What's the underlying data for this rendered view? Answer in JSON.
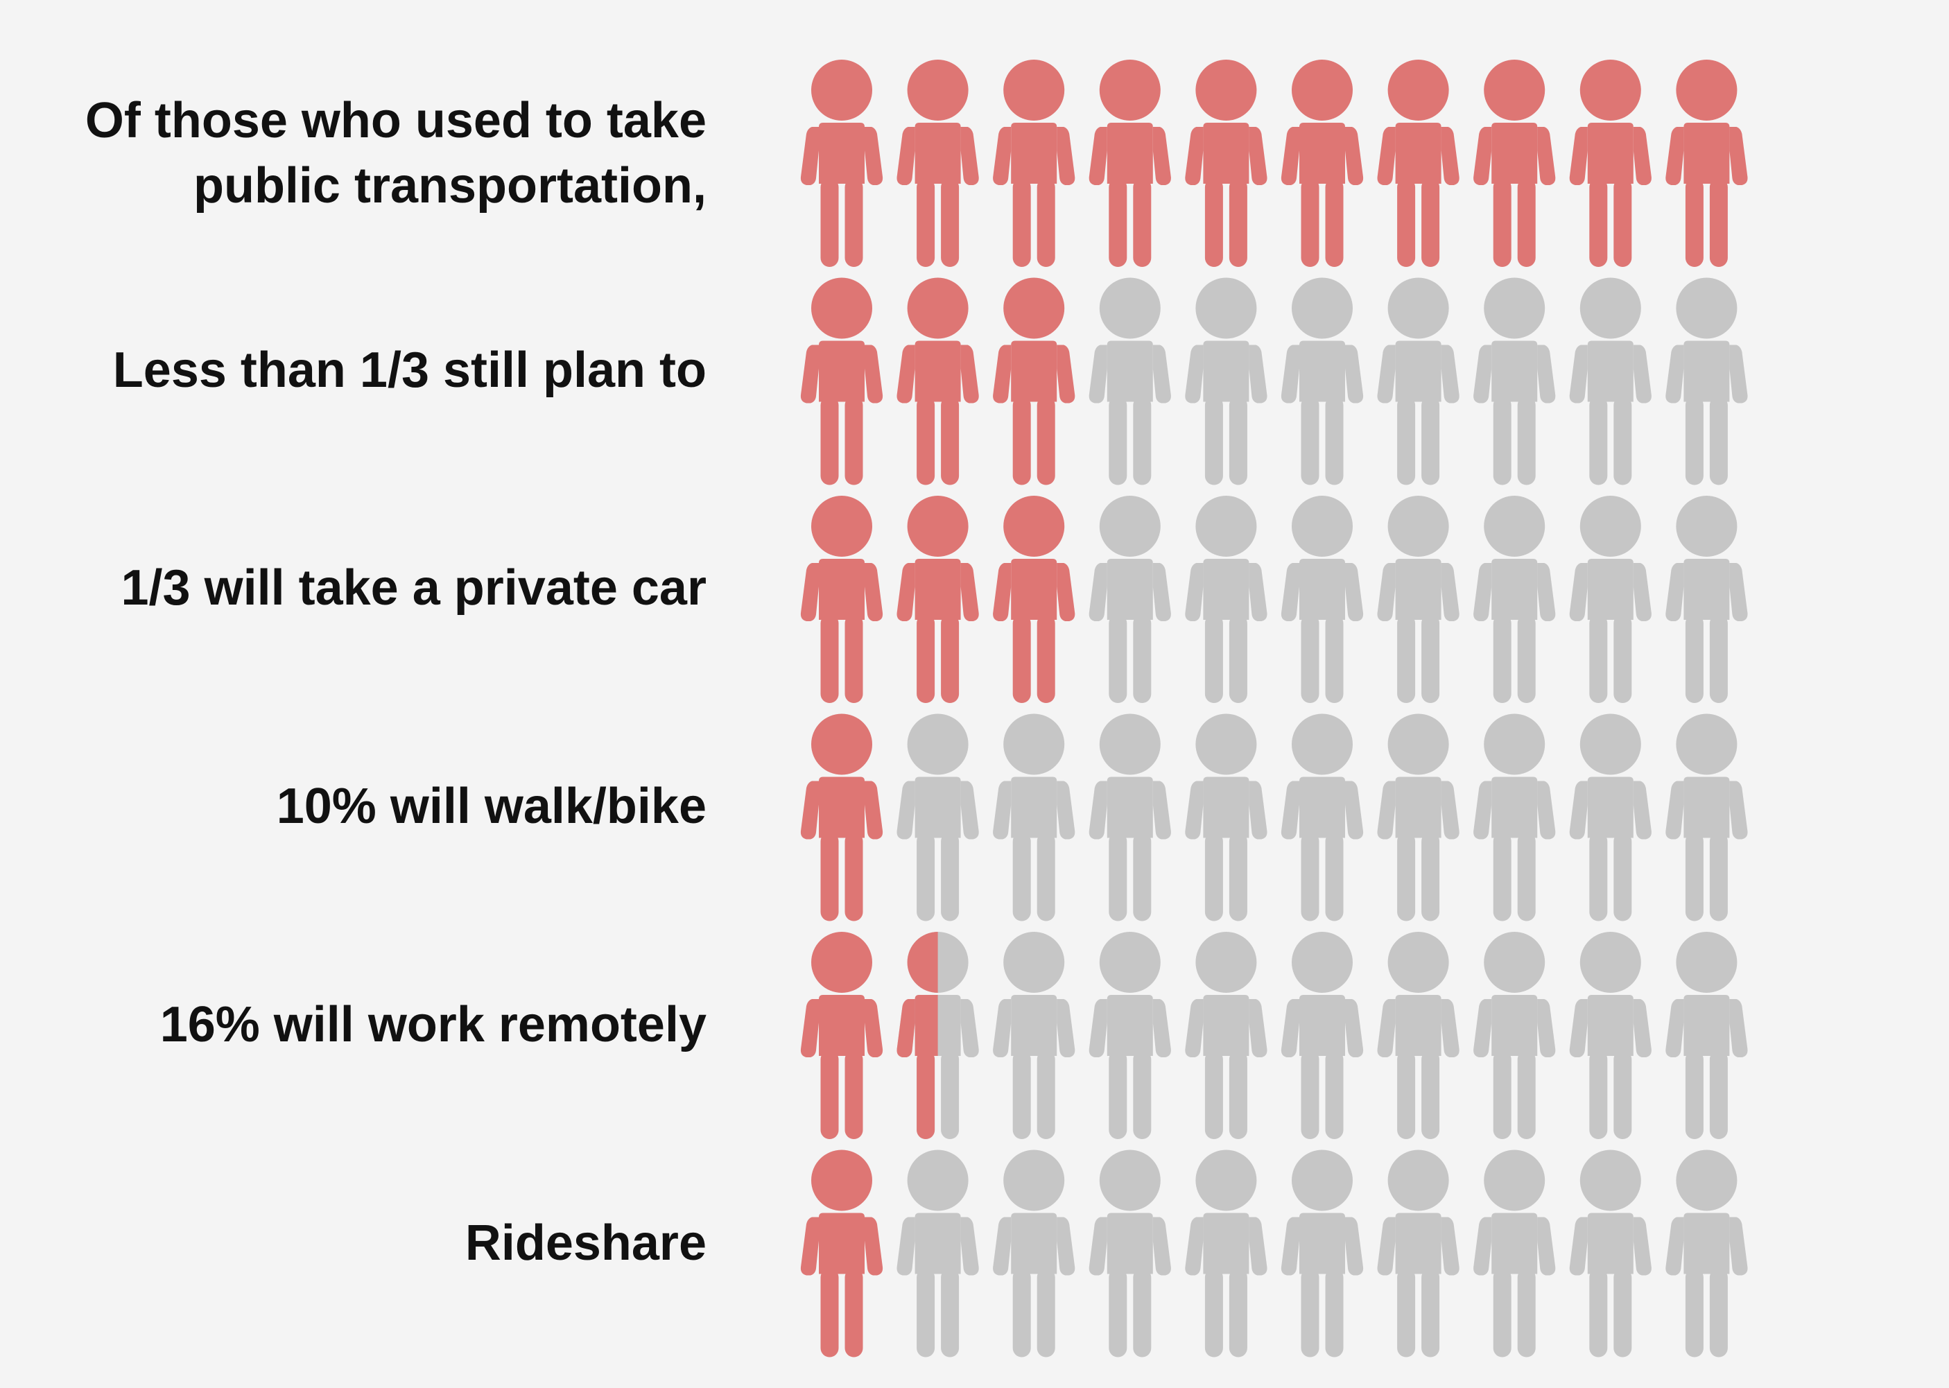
{
  "colors": {
    "highlight": "#de7674",
    "neutral": "#c6c6c6",
    "background": "#f4f4f4",
    "text": "#111111"
  },
  "icon": "person-icon",
  "chart_data": {
    "type": "pictograph",
    "icons_per_row": 10,
    "rows": [
      {
        "label_lines": [
          "Of those who used to take",
          "public transportation,"
        ],
        "highlighted": 10
      },
      {
        "label_lines": [
          "Less than 1/3 still plan to"
        ],
        "highlighted": 3
      },
      {
        "label_lines": [
          "1/3 will take a private car"
        ],
        "highlighted": 3
      },
      {
        "label_lines": [
          "10% will walk/bike"
        ],
        "highlighted": 1
      },
      {
        "label_lines": [
          "16% will work remotely"
        ],
        "highlighted": 1.5
      },
      {
        "label_lines": [
          "Rideshare"
        ],
        "highlighted": 1
      }
    ]
  }
}
